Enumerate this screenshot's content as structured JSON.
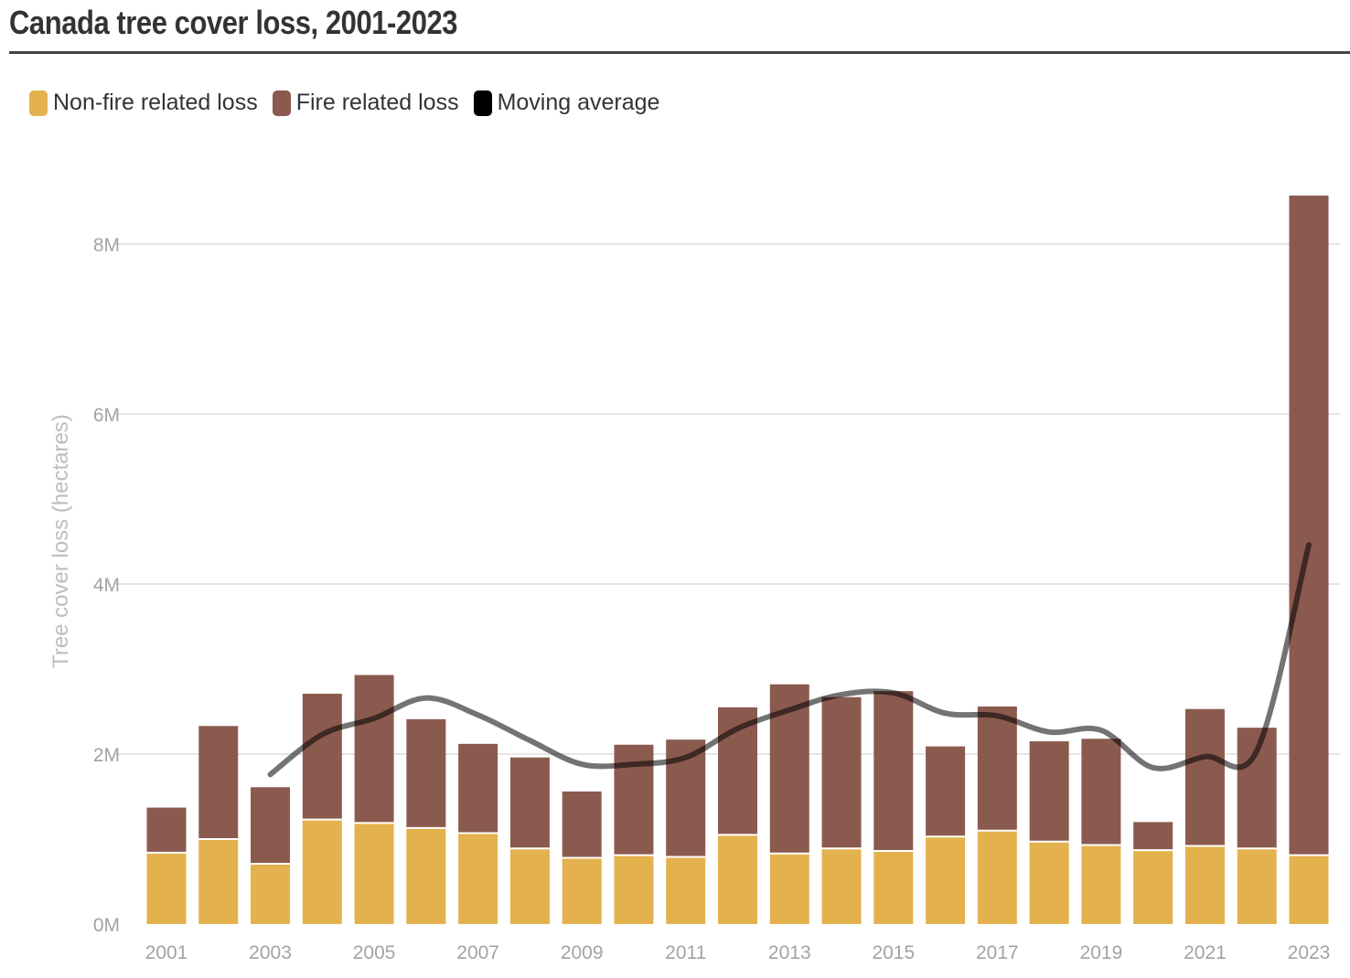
{
  "chart_data": {
    "type": "bar",
    "stacked": true,
    "title": "Canada tree cover loss, 2001-2023",
    "ylabel": "Tree cover loss (hectares)",
    "xlabel": "",
    "ylim": [
      0,
      8600000
    ],
    "yticks": [
      0,
      2000000,
      4000000,
      6000000,
      8000000
    ],
    "ytick_labels": [
      "0M",
      "2M",
      "4M",
      "6M",
      "8M"
    ],
    "categories": [
      "2001",
      "2002",
      "2003",
      "2004",
      "2005",
      "2006",
      "2007",
      "2008",
      "2009",
      "2010",
      "2011",
      "2012",
      "2013",
      "2014",
      "2015",
      "2016",
      "2017",
      "2018",
      "2019",
      "2020",
      "2021",
      "2022",
      "2023"
    ],
    "xtick_labels": [
      "2001",
      "",
      "2003",
      "",
      "2005",
      "",
      "2007",
      "",
      "2009",
      "",
      "2011",
      "",
      "2013",
      "",
      "2015",
      "",
      "2017",
      "",
      "2019",
      "",
      "2021",
      "",
      "2023"
    ],
    "grid": true,
    "legend_position": "top-left",
    "series": [
      {
        "name": "Non-fire related loss",
        "color": "#e3b24e",
        "values": [
          840000,
          1000000,
          710000,
          1230000,
          1190000,
          1130000,
          1070000,
          890000,
          780000,
          810000,
          790000,
          1050000,
          830000,
          890000,
          860000,
          1030000,
          1100000,
          970000,
          930000,
          870000,
          920000,
          890000,
          810000
        ]
      },
      {
        "name": "Fire related loss",
        "color": "#8b5a4e",
        "values": [
          530000,
          1330000,
          900000,
          1480000,
          1740000,
          1280000,
          1050000,
          1070000,
          780000,
          1300000,
          1380000,
          1500000,
          1990000,
          1780000,
          1880000,
          1060000,
          1460000,
          1180000,
          1250000,
          330000,
          1610000,
          1420000,
          7760000
        ]
      },
      {
        "name": "Moving average",
        "color": "#000000",
        "type": "line",
        "x": [
          "2003",
          "2004",
          "2005",
          "2006",
          "2007",
          "2008",
          "2009",
          "2010",
          "2011",
          "2012",
          "2013",
          "2014",
          "2015",
          "2016",
          "2017",
          "2018",
          "2019",
          "2020",
          "2021",
          "2022",
          "2023"
        ],
        "values": [
          1760000,
          2230000,
          2420000,
          2660000,
          2460000,
          2160000,
          1880000,
          1880000,
          1960000,
          2300000,
          2520000,
          2700000,
          2720000,
          2480000,
          2450000,
          2260000,
          2280000,
          1840000,
          1970000,
          2040000,
          4460000
        ]
      }
    ]
  }
}
